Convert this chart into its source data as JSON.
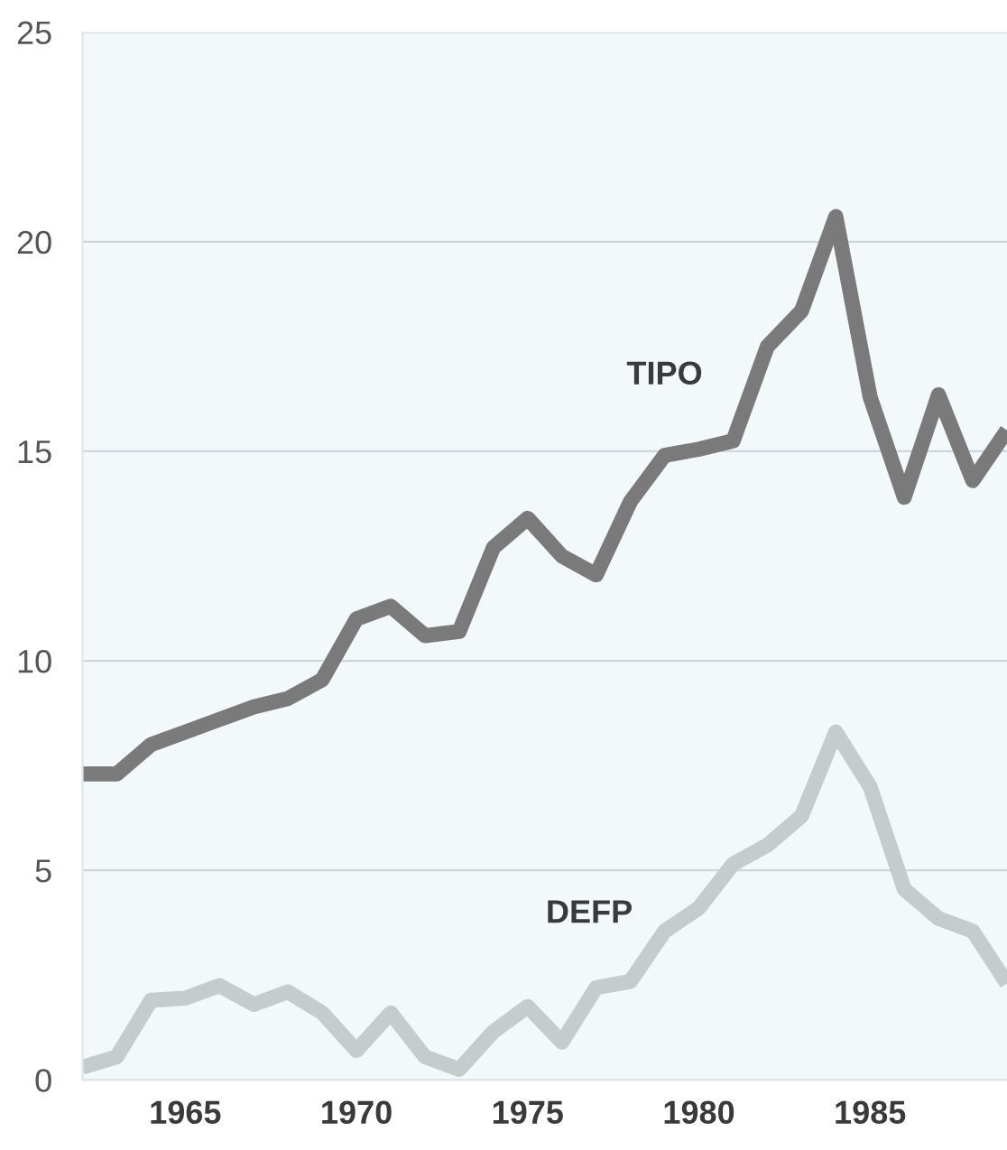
{
  "chart_data": {
    "type": "line",
    "x": [
      1962,
      1963,
      1964,
      1965,
      1966,
      1967,
      1968,
      1969,
      1970,
      1971,
      1972,
      1973,
      1974,
      1975,
      1976,
      1977,
      1978,
      1979,
      1980,
      1981,
      1982,
      1983,
      1984,
      1985,
      1986,
      1987,
      1988,
      1989
    ],
    "series": [
      {
        "name": "TIPO",
        "color": "#7a7a7a",
        "values": [
          7.3,
          7.3,
          8.0,
          8.3,
          8.6,
          8.9,
          9.1,
          9.55,
          11.0,
          11.3,
          10.6,
          10.7,
          12.7,
          13.4,
          12.5,
          12.05,
          13.8,
          14.9,
          15.05,
          15.25,
          17.5,
          18.35,
          20.6,
          16.3,
          13.9,
          16.35,
          14.3,
          15.5
        ]
      },
      {
        "name": "DEFP",
        "color": "#c4cccc",
        "values": [
          0.3,
          0.55,
          1.9,
          1.95,
          2.25,
          1.8,
          2.1,
          1.6,
          0.7,
          1.6,
          0.55,
          0.25,
          1.15,
          1.75,
          0.9,
          2.2,
          2.35,
          3.55,
          4.1,
          5.15,
          5.6,
          6.3,
          8.3,
          7.0,
          4.55,
          3.85,
          3.55,
          2.3
        ]
      }
    ],
    "xlim": [
      1962,
      1989
    ],
    "xticks": [
      1965,
      1970,
      1975,
      1980,
      1985
    ],
    "ylim": [
      0,
      25
    ],
    "yticks": [
      0,
      5,
      10,
      15,
      20,
      25
    ],
    "grid": "y",
    "marker": "none",
    "line_style": "solid",
    "legend": false
  }
}
